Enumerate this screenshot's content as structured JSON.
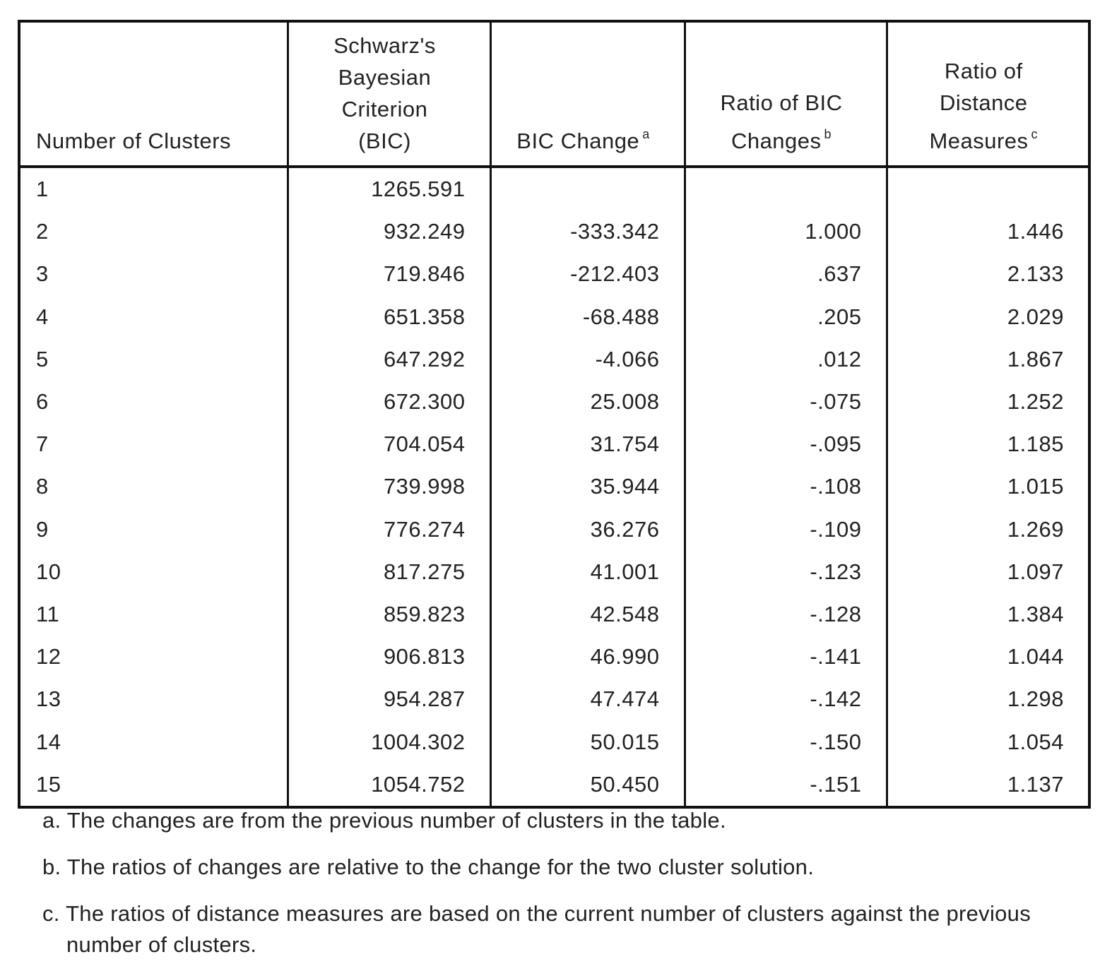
{
  "table": {
    "header": [
      {
        "lines": [
          "Number of Clusters"
        ]
      },
      {
        "lines": [
          "Schwarz's",
          "Bayesian",
          "Criterion",
          "(BIC)"
        ]
      },
      {
        "lines": [
          "BIC Change"
        ],
        "note": "a"
      },
      {
        "lines": [
          "Ratio of BIC",
          "Changes"
        ],
        "note": "b"
      },
      {
        "lines": [
          "Ratio of",
          "Distance",
          "Measures"
        ],
        "note": "c"
      }
    ],
    "rows": [
      [
        "1",
        "1265.591",
        null,
        null,
        null
      ],
      [
        "2",
        "932.249",
        "-333.342",
        "1.000",
        "1.446"
      ],
      [
        "3",
        "719.846",
        "-212.403",
        ".637",
        "2.133"
      ],
      [
        "4",
        "651.358",
        "-68.488",
        ".205",
        "2.029"
      ],
      [
        "5",
        "647.292",
        "-4.066",
        ".012",
        "1.867"
      ],
      [
        "6",
        "672.300",
        "25.008",
        "-.075",
        "1.252"
      ],
      [
        "7",
        "704.054",
        "31.754",
        "-.095",
        "1.185"
      ],
      [
        "8",
        "739.998",
        "35.944",
        "-.108",
        "1.015"
      ],
      [
        "9",
        "776.274",
        "36.276",
        "-.109",
        "1.269"
      ],
      [
        "10",
        "817.275",
        "41.001",
        "-.123",
        "1.097"
      ],
      [
        "11",
        "859.823",
        "42.548",
        "-.128",
        "1.384"
      ],
      [
        "12",
        "906.813",
        "46.990",
        "-.141",
        "1.044"
      ],
      [
        "13",
        "954.287",
        "47.474",
        "-.142",
        "1.298"
      ],
      [
        "14",
        "1004.302",
        "50.015",
        "-.150",
        "1.054"
      ],
      [
        "15",
        "1054.752",
        "50.450",
        "-.151",
        "1.137"
      ]
    ]
  },
  "footnotes": [
    "a. The changes are from the previous number of clusters in the table.",
    "b. The ratios of changes are relative to the change for the two cluster solution.",
    "c. The ratios of distance measures are based on the current number of clusters against the previous number of clusters."
  ]
}
